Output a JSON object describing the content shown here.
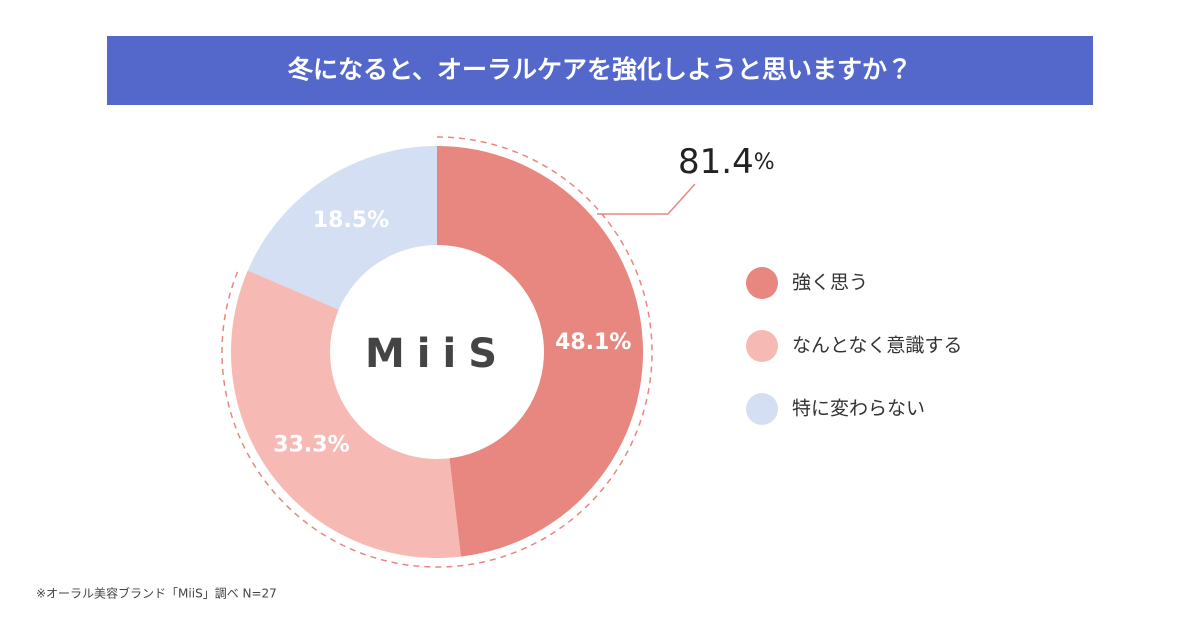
{
  "chart_data": {
    "type": "pie",
    "title": "冬になると、オーラルケアを強化しようと思いますか？",
    "categories": [
      "強く思う",
      "なんとなく意識する",
      "特に変わらない"
    ],
    "values": [
      48.1,
      33.3,
      18.5
    ],
    "value_labels": [
      "48.1%",
      "33.3%",
      "18.5%"
    ],
    "colors": [
      "#e8877f",
      "#f7b9b3",
      "#d4dff3"
    ],
    "center_label": "MiiS",
    "callout_value": 81.4,
    "callout_unit": "%",
    "note": "※オーラル美容ブランド「MiiS」調べ N=27"
  }
}
